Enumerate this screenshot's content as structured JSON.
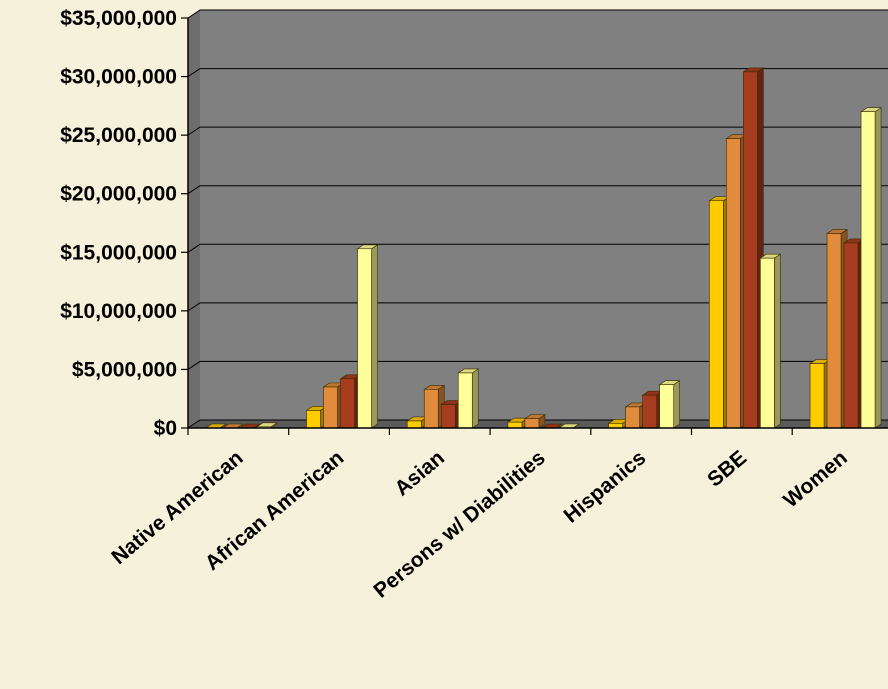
{
  "chart_data": {
    "type": "bar",
    "categories": [
      "Native American",
      "African American",
      "Asian",
      "Persons w/ Diabilities",
      "Hispanics",
      "SBE",
      "Women"
    ],
    "series": [
      {
        "values": [
          0,
          1500000,
          600000,
          500000,
          400000,
          19400000,
          5500000
        ],
        "color": "#ffcc00"
      },
      {
        "values": [
          0,
          3500000,
          3300000,
          800000,
          1800000,
          24700000,
          16600000
        ],
        "color": "#e08c3c"
      },
      {
        "values": [
          0,
          4200000,
          2000000,
          0,
          2800000,
          30400000,
          15800000
        ],
        "color": "#a83c1e"
      },
      {
        "values": [
          100000,
          15300000,
          4700000,
          0,
          3700000,
          14500000,
          27000000
        ],
        "color": "#ffff99"
      }
    ],
    "yticks": [
      "$0",
      "$5,000,000",
      "$10,000,000",
      "$15,000,000",
      "$20,000,000",
      "$25,000,000",
      "$30,000,000",
      "$35,000,000"
    ],
    "ylim": [
      0,
      35000000
    ],
    "grid": true,
    "plot_background": "#808080",
    "page_background": "#f5f1da"
  }
}
